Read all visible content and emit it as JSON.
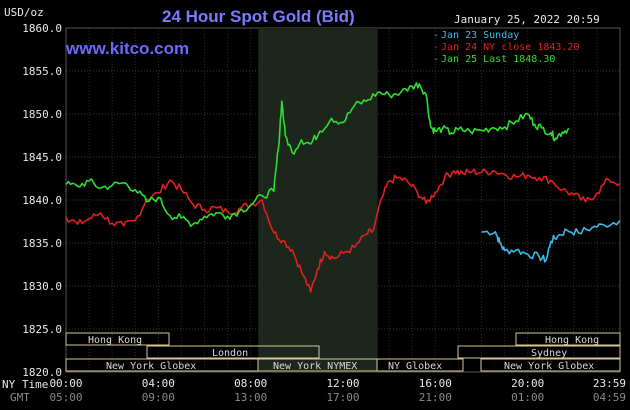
{
  "header": {
    "unit": "USD/oz",
    "title": "24 Hour Spot Gold (Bid)",
    "datetime": "January 25, 2022 20:59",
    "brand": "www.kitco.com"
  },
  "legend": [
    {
      "label": "Jan 23 Sunday",
      "color": "#3eb7e6"
    },
    {
      "label": "Jan 24 NY close 1843.20",
      "color": "#e02020"
    },
    {
      "label": "Jan 25 Last 1848.30",
      "color": "#2fdc2f"
    }
  ],
  "axis_labels": {
    "ny_time": "NY Time",
    "gmt": "GMT"
  },
  "sessions": {
    "hong_kong_1": "Hong Kong",
    "london": "London",
    "new_york_globex_1": "New York Globex",
    "new_york_nymex": "New York NYMEX",
    "ny_globex": "NY Globex",
    "hong_kong_2": "Hong Kong",
    "sydney": "Sydney",
    "new_york_globex_2": "New York Globex"
  },
  "chart_data": {
    "type": "line",
    "title": "24 Hour Spot Gold (Bid)",
    "ylabel": "USD/oz",
    "ylim": [
      1820,
      1860
    ],
    "yticks": [
      "1820.0",
      "1825.0",
      "1830.0",
      "1835.0",
      "1840.0",
      "1845.0",
      "1850.0",
      "1855.0",
      "1860.0"
    ],
    "xlim": [
      0,
      24
    ],
    "xticks_ny": [
      "00:00",
      "04:00",
      "08:00",
      "12:00",
      "16:00",
      "20:00",
      "23:59"
    ],
    "xticks_gmt": [
      "05:00",
      "09:00",
      "13:00",
      "17:00",
      "21:00",
      "01:00",
      "04:59"
    ],
    "shaded_hours": [
      8.33,
      13.5
    ],
    "grid": true,
    "series": [
      {
        "name": "Jan 23 Sunday",
        "color": "#3eb7e6",
        "x": [
          18.0,
          18.6,
          18.8,
          19.0,
          19.5,
          20.0,
          20.5,
          20.8,
          21.0,
          21.3,
          21.7,
          22.2,
          22.8,
          23.3,
          23.99
        ],
        "y": [
          1836.3,
          1836.3,
          1835.0,
          1834.1,
          1834.2,
          1833.7,
          1833.4,
          1833.0,
          1835.2,
          1835.8,
          1836.5,
          1836.2,
          1836.8,
          1837.1,
          1837.6
        ]
      },
      {
        "name": "Jan 24 NY close 1843.20",
        "color": "#e02020",
        "x": [
          0.0,
          0.5,
          1.0,
          1.5,
          2.0,
          2.5,
          3.0,
          3.5,
          4.0,
          4.5,
          5.0,
          5.5,
          6.0,
          6.5,
          7.0,
          7.5,
          8.0,
          8.5,
          9.0,
          9.4,
          9.8,
          10.2,
          10.6,
          10.9,
          11.2,
          11.6,
          12.0,
          12.5,
          13.0,
          13.3,
          13.7,
          14.0,
          14.4,
          14.8,
          15.2,
          15.6,
          16.0,
          16.4,
          16.8,
          17.2,
          17.6,
          18.0,
          18.5,
          19.0,
          19.5,
          20.0,
          20.5,
          21.0,
          21.5,
          22.0,
          22.5,
          23.0,
          23.5,
          23.99
        ],
        "y": [
          1838.0,
          1837.2,
          1837.8,
          1838.5,
          1837.3,
          1837.0,
          1837.6,
          1840.1,
          1840.8,
          1842.3,
          1841.2,
          1839.5,
          1838.9,
          1839.1,
          1838.6,
          1839.0,
          1839.5,
          1840.0,
          1836.2,
          1835.3,
          1834.2,
          1831.7,
          1829.3,
          1832.0,
          1834.0,
          1833.2,
          1833.8,
          1834.5,
          1836.0,
          1836.4,
          1840.3,
          1842.2,
          1842.6,
          1842.1,
          1841.0,
          1839.6,
          1840.9,
          1842.6,
          1843.4,
          1843.1,
          1843.3,
          1843.2,
          1843.4,
          1843.0,
          1842.7,
          1842.9,
          1842.6,
          1842.3,
          1841.2,
          1840.6,
          1839.8,
          1840.8,
          1842.4,
          1841.9
        ]
      },
      {
        "name": "Jan 25 Last 1848.30",
        "color": "#2fdc2f",
        "x": [
          0.0,
          0.5,
          1.0,
          1.5,
          2.0,
          2.5,
          3.0,
          3.5,
          4.0,
          4.5,
          5.0,
          5.5,
          6.0,
          6.5,
          7.0,
          7.5,
          8.0,
          8.5,
          9.0,
          9.2,
          9.35,
          9.5,
          9.8,
          10.2,
          10.6,
          11.0,
          11.5,
          12.0,
          12.5,
          13.0,
          13.5,
          14.0,
          14.5,
          15.0,
          15.3,
          15.6,
          15.8,
          16.0,
          16.3,
          16.7,
          17.0,
          17.5,
          18.0,
          18.5,
          19.0,
          19.5,
          20.0,
          20.3,
          20.6,
          21.0,
          21.2,
          21.5,
          21.8
        ],
        "y": [
          1841.8,
          1841.6,
          1842.2,
          1841.4,
          1841.7,
          1842.0,
          1841.2,
          1839.8,
          1840.3,
          1838.2,
          1837.9,
          1837.2,
          1838.1,
          1838.5,
          1838.1,
          1838.7,
          1839.4,
          1840.5,
          1841.0,
          1846.0,
          1851.5,
          1847.5,
          1845.5,
          1847.0,
          1846.5,
          1848.0,
          1849.5,
          1849.0,
          1851.0,
          1851.5,
          1852.5,
          1852.2,
          1852.5,
          1853.2,
          1853.5,
          1852.3,
          1848.5,
          1848.0,
          1848.3,
          1847.8,
          1848.2,
          1848.0,
          1848.1,
          1848.4,
          1848.5,
          1849.2,
          1850.0,
          1848.8,
          1848.4,
          1847.8,
          1847.2,
          1847.9,
          1848.3
        ]
      }
    ]
  }
}
